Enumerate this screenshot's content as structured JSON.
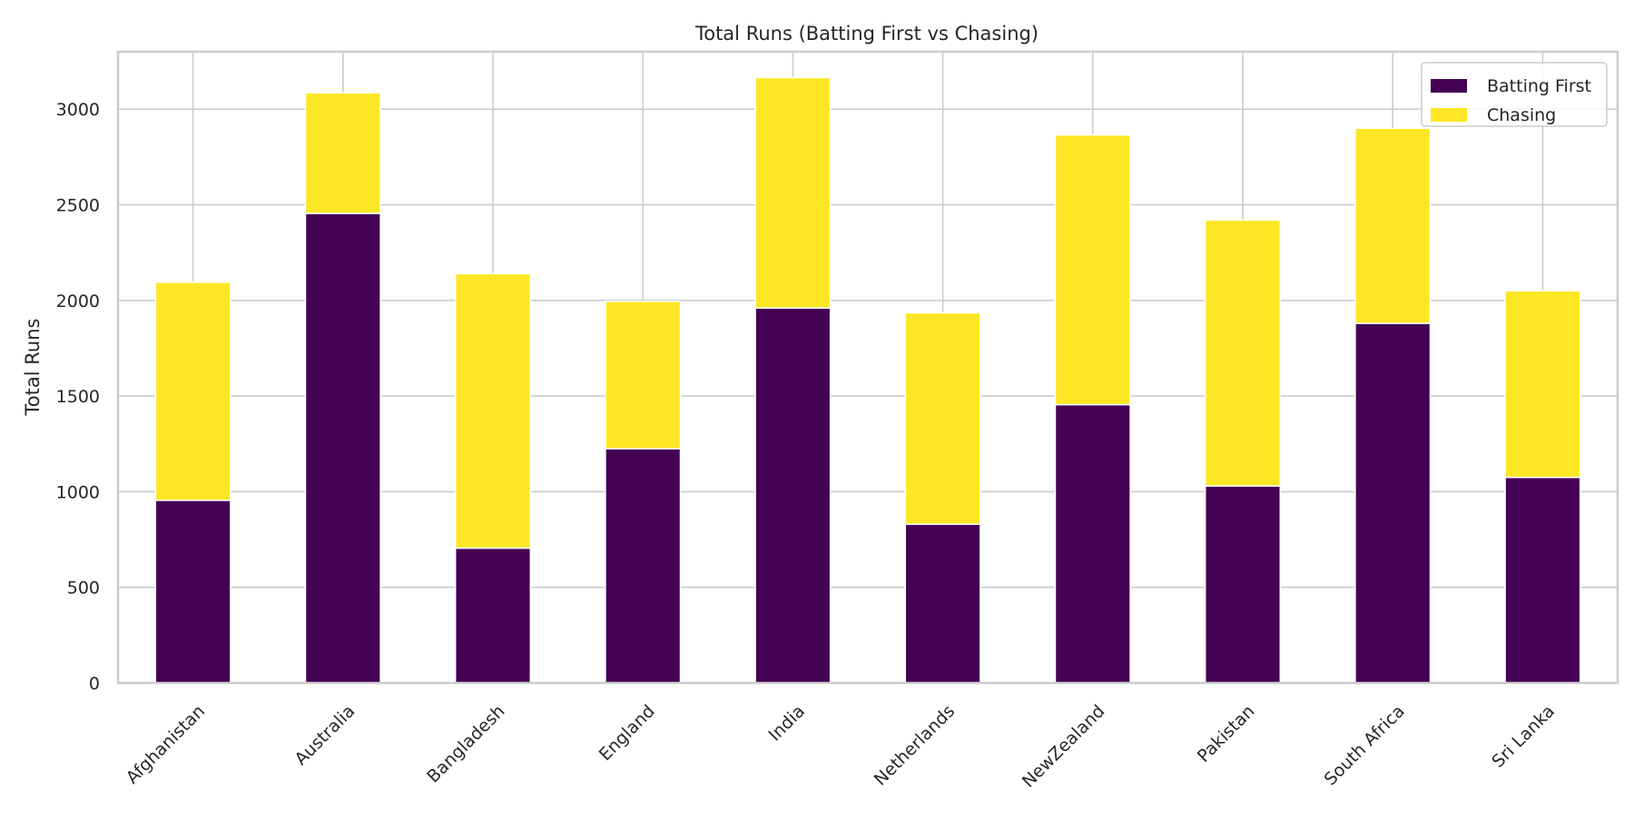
{
  "chart_data": {
    "type": "bar",
    "stacked": true,
    "title": "Total Runs (Batting First vs Chasing)",
    "xlabel": "",
    "ylabel": "Total Runs",
    "ylim": [
      0,
      3300
    ],
    "yticks": [
      0,
      500,
      1000,
      1500,
      2000,
      2500,
      3000
    ],
    "grid": true,
    "legend_position": "top-right",
    "categories": [
      "Afghanistan",
      "Australia",
      "Bangladesh",
      "England",
      "India",
      "Netherlands",
      "NewZealand",
      "Pakistan",
      "South Africa",
      "Sri Lanka"
    ],
    "series": [
      {
        "name": "Batting First",
        "color": "#440154",
        "values": [
          955,
          2455,
          705,
          1225,
          1960,
          830,
          1455,
          1030,
          1880,
          1075
        ]
      },
      {
        "name": "Chasing",
        "color": "#fde725",
        "values": [
          1140,
          630,
          1435,
          770,
          1205,
          1105,
          1410,
          1390,
          1020,
          975
        ]
      }
    ]
  }
}
